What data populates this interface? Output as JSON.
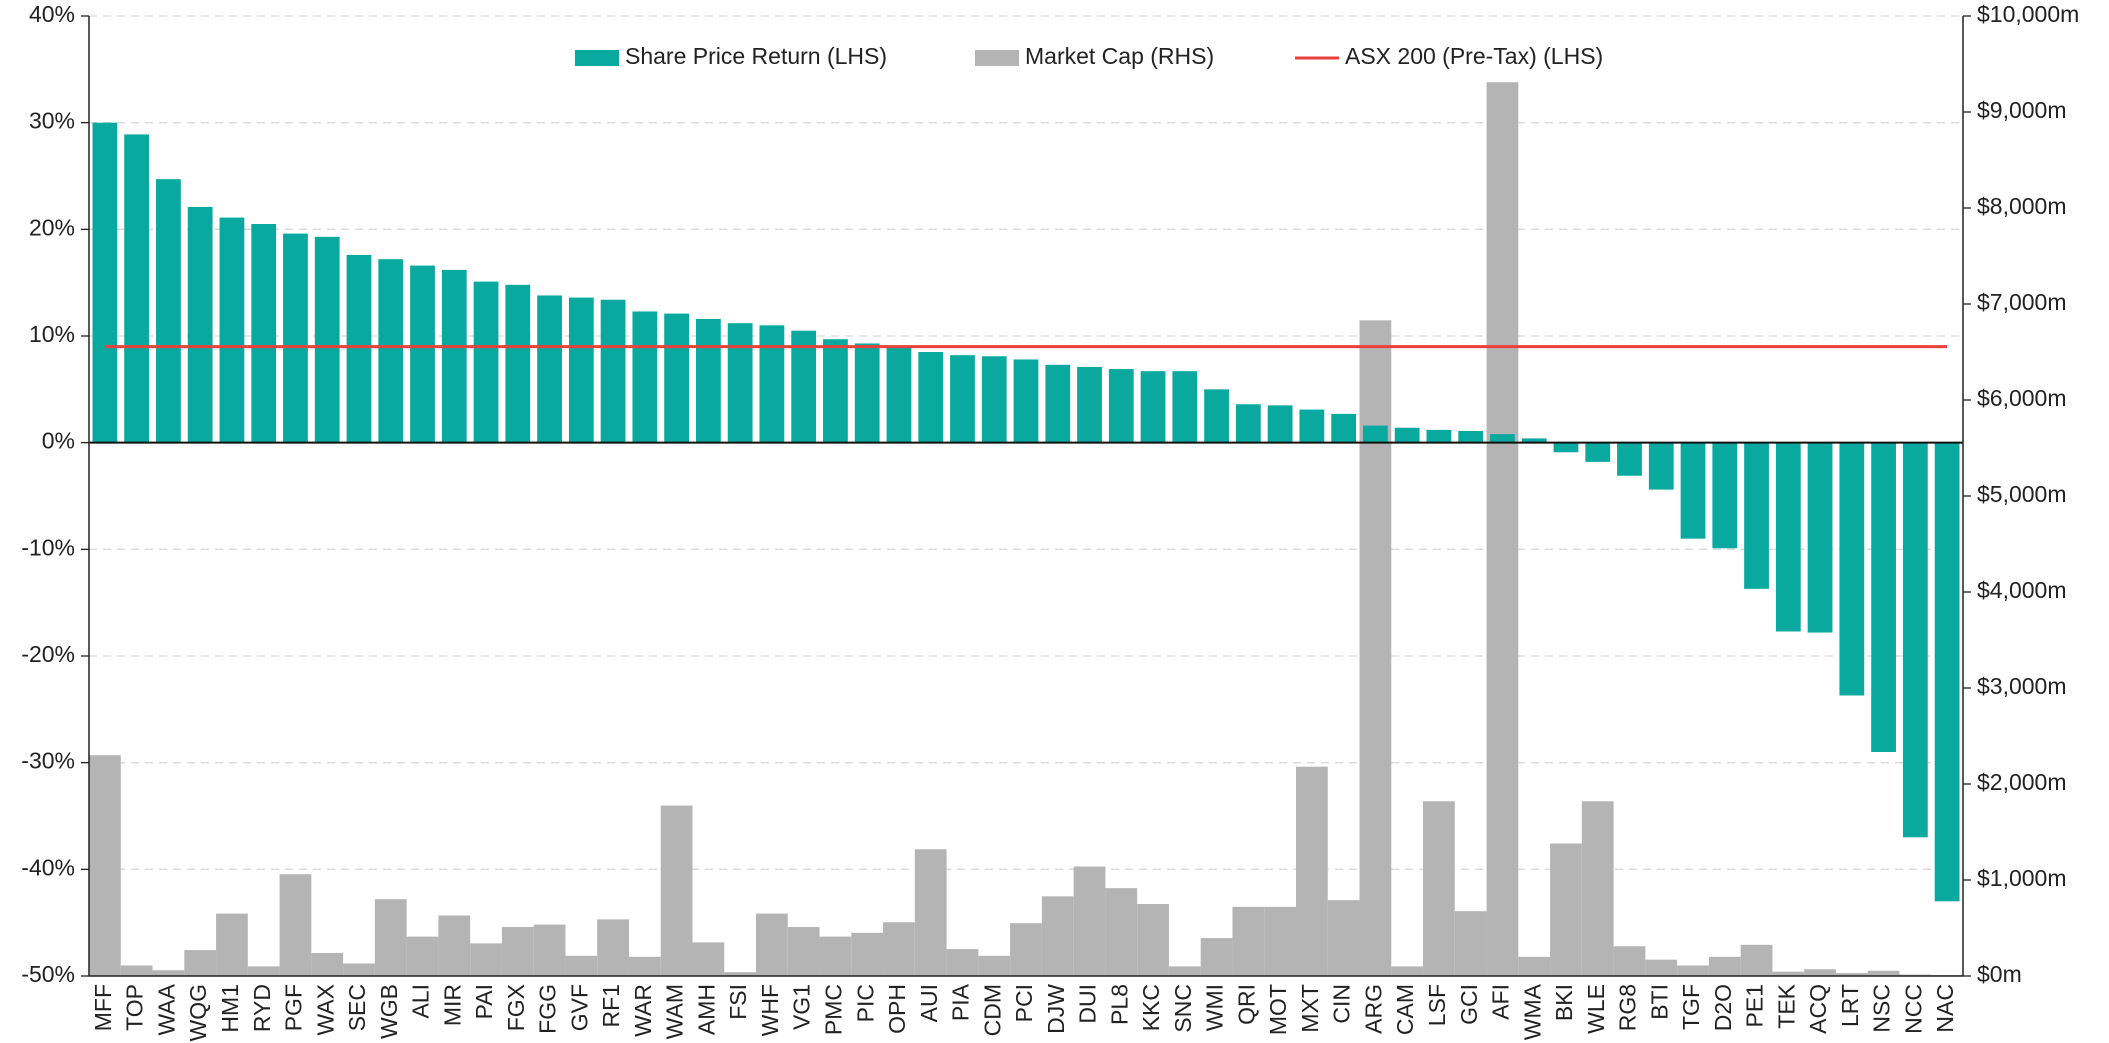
{
  "chart_data": {
    "type": "bar",
    "categories": [
      "MFF",
      "TOP",
      "WAA",
      "WQG",
      "HM1",
      "RYD",
      "PGF",
      "WAX",
      "SEC",
      "WGB",
      "ALI",
      "MIR",
      "PAI",
      "FGX",
      "FGG",
      "GVF",
      "RF1",
      "WAR",
      "WAM",
      "AMH",
      "FSI",
      "WHF",
      "VG1",
      "PMC",
      "PIC",
      "OPH",
      "AUI",
      "PIA",
      "CDM",
      "PCI",
      "DJW",
      "DUI",
      "PL8",
      "KKC",
      "SNC",
      "WMI",
      "QRI",
      "MOT",
      "MXT",
      "CIN",
      "ARG",
      "CAM",
      "LSF",
      "GCI",
      "AFI",
      "WMA",
      "BKI",
      "WLE",
      "RG8",
      "BTI",
      "TGF",
      "D2O",
      "PE1",
      "TEK",
      "ACQ",
      "LRT",
      "NSC",
      "NCC",
      "NAC"
    ],
    "series": [
      {
        "name": "Share Price Return (LHS)",
        "type": "bar",
        "axis": "y",
        "color": "#0aa9a0",
        "values": [
          30,
          28.9,
          24.7,
          22.1,
          21.1,
          20.5,
          19.6,
          19.3,
          17.6,
          17.2,
          16.6,
          16.2,
          15.1,
          14.8,
          13.8,
          13.6,
          13.4,
          12.3,
          12.1,
          11.6,
          11.2,
          11.0,
          10.5,
          9.7,
          9.3,
          8.9,
          8.5,
          8.2,
          8.1,
          7.8,
          7.3,
          7.1,
          6.9,
          6.7,
          6.7,
          5.0,
          3.6,
          3.5,
          3.1,
          2.7,
          1.6,
          1.4,
          1.2,
          1.1,
          0.8,
          0.4,
          -0.9,
          -1.8,
          -3.1,
          -4.4,
          -9.0,
          -9.9,
          -13.7,
          -17.7,
          -17.8,
          -23.7,
          -29.0,
          -37.0,
          -43.0
        ]
      },
      {
        "name": "Market Cap (RHS)",
        "type": "bar",
        "axis": "y2",
        "color": "#b4b4b4",
        "values": [
          2300,
          110,
          60,
          270,
          650,
          100,
          1060,
          240,
          130,
          800,
          410,
          630,
          340,
          510,
          535,
          210,
          590,
          200,
          1775,
          350,
          40,
          650,
          510,
          410,
          450,
          560,
          1320,
          280,
          210,
          550,
          830,
          1140,
          915,
          750,
          100,
          395,
          720,
          720,
          2180,
          790,
          6830,
          100,
          1820,
          675,
          9310,
          200,
          1380,
          1820,
          310,
          170,
          110,
          200,
          325,
          45,
          70,
          30,
          55,
          15,
          10
        ]
      },
      {
        "name": "ASX 200 (Pre-Tax) (LHS)",
        "type": "line",
        "axis": "y",
        "color": "#e8403a",
        "values": [
          9,
          9,
          9,
          9,
          9,
          9,
          9,
          9,
          9,
          9,
          9,
          9,
          9,
          9,
          9,
          9,
          9,
          9,
          9,
          9,
          9,
          9,
          9,
          9,
          9,
          9,
          9,
          9,
          9,
          9,
          9,
          9,
          9,
          9,
          9,
          9,
          9,
          9,
          9,
          9,
          9,
          9,
          9,
          9,
          9,
          9,
          9,
          9,
          9,
          9,
          9,
          9,
          9,
          9,
          9,
          9,
          9,
          9,
          9
        ]
      }
    ],
    "ylim": [
      -50,
      40
    ],
    "yticks": [
      {
        "value": -50,
        "label": "-50%"
      },
      {
        "value": -40,
        "label": "-40%"
      },
      {
        "value": -30,
        "label": "-30%"
      },
      {
        "value": -20,
        "label": "-20%"
      },
      {
        "value": -10,
        "label": "-10%"
      },
      {
        "value": 0,
        "label": "0%"
      },
      {
        "value": 10,
        "label": "10%"
      },
      {
        "value": 20,
        "label": "20%"
      },
      {
        "value": 30,
        "label": "30%"
      },
      {
        "value": 40,
        "label": "40%"
      }
    ],
    "y2lim": [
      0,
      10000
    ],
    "y2ticks": [
      {
        "value": 0,
        "label": "$0m"
      },
      {
        "value": 1000,
        "label": "$1,000m"
      },
      {
        "value": 2000,
        "label": "$2,000m"
      },
      {
        "value": 3000,
        "label": "$3,000m"
      },
      {
        "value": 4000,
        "label": "$4,000m"
      },
      {
        "value": 5000,
        "label": "$5,000m"
      },
      {
        "value": 6000,
        "label": "$6,000m"
      },
      {
        "value": 7000,
        "label": "$7,000m"
      },
      {
        "value": 8000,
        "label": "$8,000m"
      },
      {
        "value": 9000,
        "label": "$9,000m"
      },
      {
        "value": 10000,
        "label": "$10,000m"
      }
    ],
    "grid": true,
    "legend": "top"
  }
}
